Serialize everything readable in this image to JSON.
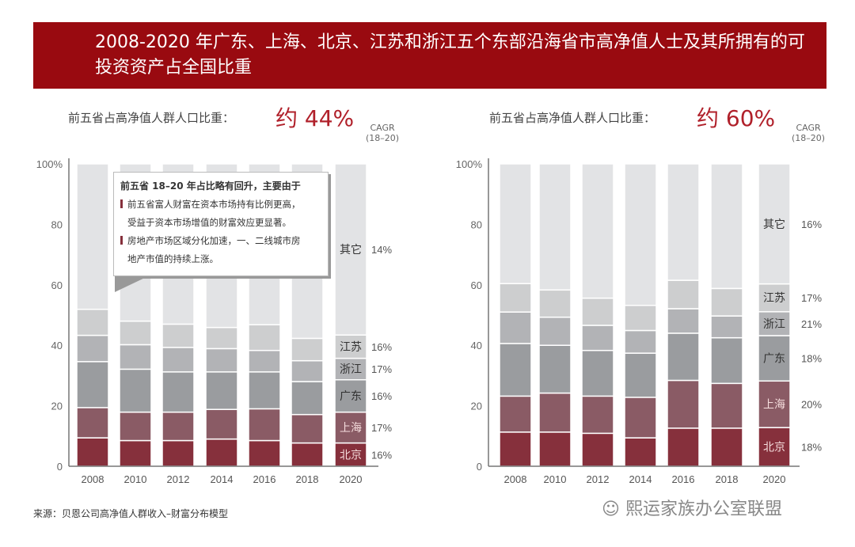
{
  "title": "2008-2020 年广东、上海、北京、江苏和浙江五个东部沿海省市高净值人士及其所拥有的可投资资产占全国比重",
  "colors": {
    "banner": "#990a10",
    "北京": "#86303c",
    "上海": "#8a5b65",
    "广东": "#9a9c9f",
    "浙江": "#b2b3b6",
    "江苏": "#cdcecf",
    "其它": "#e2e3e5"
  },
  "left": {
    "subhead": "前五省占高净值人群人口比重：",
    "big": "约 44%",
    "cagr_label": "CAGR",
    "cagr_period": "(18–20)"
  },
  "right": {
    "subhead": "前五省占高净值人群人口比重：",
    "big": "约 60%",
    "cagr_label": "CAGR",
    "cagr_period": "(18–20)"
  },
  "callout": {
    "title": "前五省 18–20 年占比略有回升，主要由于",
    "bullets": [
      {
        "line1": "前五省富人财富在资本市场持有比例更高，",
        "line2": "受益于资本市场增值的财富效应更显著。"
      },
      {
        "line1": "房地产市场区域分化加速，一、二线城市房",
        "line2": "地产市值的持续上涨。"
      }
    ]
  },
  "source": "来源：贝恩公司高净值人群收入–财富分布模型",
  "watermark": "熙运家族办公室联盟",
  "chart_data": [
    {
      "type": "bar",
      "stacked": true,
      "categories": [
        "2008",
        "2010",
        "2012",
        "2014",
        "2016",
        "2018",
        "2020"
      ],
      "ylim": [
        0,
        100
      ],
      "yticks": [
        "0",
        "20",
        "40",
        "60",
        "80",
        "100%"
      ],
      "series": [
        {
          "name": "北京",
          "values": [
            9.4,
            8.5,
            8.5,
            9.0,
            8.5,
            7.7,
            7.7
          ],
          "cagr": "16%"
        },
        {
          "name": "上海",
          "values": [
            10.0,
            9.4,
            9.4,
            9.8,
            10.5,
            9.4,
            10.2
          ],
          "cagr": "17%"
        },
        {
          "name": "广东",
          "values": [
            15.2,
            14.2,
            13.3,
            12.4,
            12.2,
            10.9,
            10.7
          ],
          "cagr": "16%"
        },
        {
          "name": "浙江",
          "values": [
            8.7,
            8.1,
            8.1,
            7.7,
            7.1,
            6.9,
            7.1
          ],
          "cagr": "17%"
        },
        {
          "name": "江苏",
          "values": [
            8.6,
            7.8,
            7.7,
            7.0,
            8.5,
            7.4,
            7.7
          ],
          "cagr": "16%"
        },
        {
          "name": "其它",
          "values": [
            48.1,
            52.0,
            53.0,
            54.1,
            53.2,
            57.7,
            56.6
          ],
          "cagr": "14%"
        }
      ]
    },
    {
      "type": "bar",
      "stacked": true,
      "categories": [
        "2008",
        "2010",
        "2012",
        "2014",
        "2016",
        "2018",
        "2020"
      ],
      "ylim": [
        0,
        100
      ],
      "yticks": [
        "0",
        "20",
        "40",
        "60",
        "80",
        "100%"
      ],
      "series": [
        {
          "name": "北京",
          "values": [
            11.3,
            11.3,
            10.9,
            9.4,
            12.6,
            12.6,
            12.8
          ],
          "cagr": "18%"
        },
        {
          "name": "上海",
          "values": [
            11.9,
            12.9,
            12.3,
            13.4,
            15.8,
            14.8,
            15.4
          ],
          "cagr": "20%"
        },
        {
          "name": "广东",
          "values": [
            17.4,
            15.8,
            15.1,
            14.6,
            15.6,
            15.1,
            15.0
          ],
          "cagr": "18%"
        },
        {
          "name": "浙江",
          "values": [
            10.4,
            9.3,
            8.3,
            7.5,
            8.1,
            7.2,
            7.9
          ],
          "cagr": "21%"
        },
        {
          "name": "江苏",
          "values": [
            9.4,
            9.0,
            9.0,
            8.3,
            9.4,
            9.1,
            9.2
          ],
          "cagr": "17%"
        },
        {
          "name": "其它",
          "values": [
            39.6,
            41.7,
            44.4,
            46.8,
            38.5,
            41.2,
            39.7
          ],
          "cagr": "16%"
        }
      ]
    }
  ]
}
